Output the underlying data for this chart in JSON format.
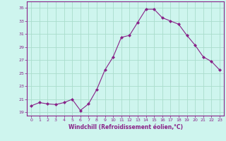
{
  "x": [
    0,
    1,
    2,
    3,
    4,
    5,
    6,
    7,
    8,
    9,
    10,
    11,
    12,
    13,
    14,
    15,
    16,
    17,
    18,
    19,
    20,
    21,
    22,
    23
  ],
  "y": [
    20.0,
    20.5,
    20.3,
    20.2,
    20.5,
    21.0,
    19.3,
    20.3,
    22.5,
    25.5,
    27.5,
    30.5,
    30.8,
    32.8,
    34.8,
    34.8,
    33.5,
    33.0,
    32.5,
    30.8,
    29.3,
    27.5,
    26.8,
    25.5
  ],
  "line_color": "#882288",
  "marker": "D",
  "marker_size": 2,
  "bg_color": "#cef5ee",
  "grid_color": "#aaddcc",
  "xlabel": "Windchill (Refroidissement éolien,°C)",
  "xlabel_color": "#882288",
  "tick_color": "#882288",
  "spine_color": "#882288",
  "ylabel_ticks": [
    19,
    21,
    23,
    25,
    27,
    29,
    31,
    33,
    35
  ],
  "xlim": [
    -0.5,
    23.5
  ],
  "ylim": [
    18.5,
    36.0
  ]
}
